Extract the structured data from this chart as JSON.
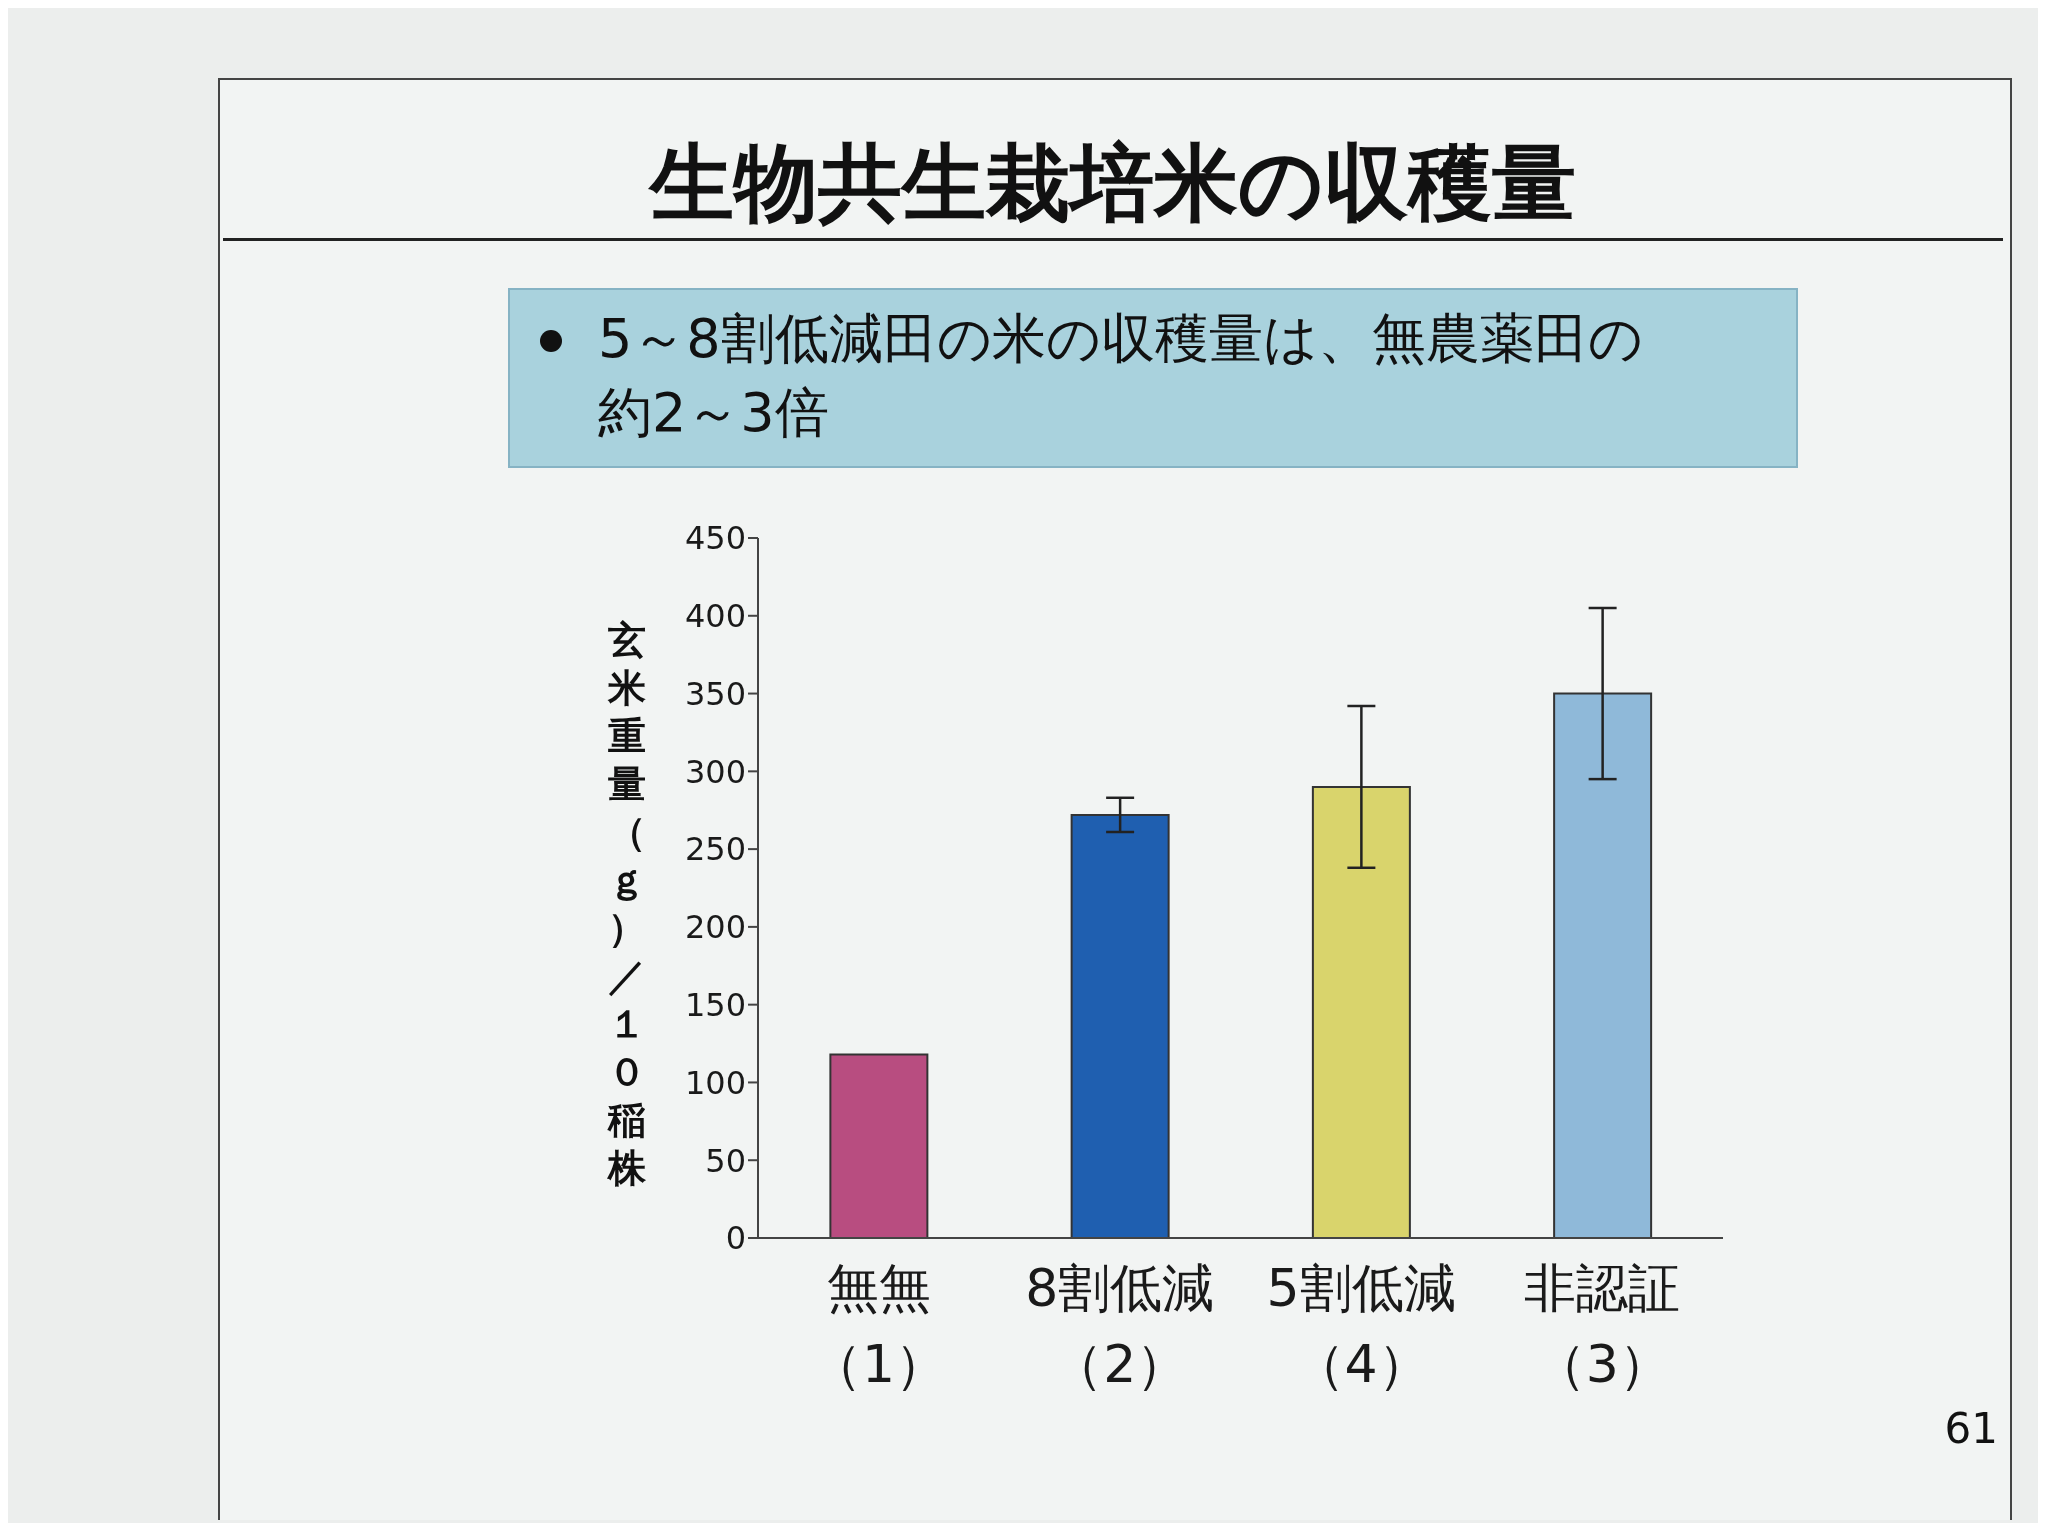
{
  "chart_data": {
    "type": "bar",
    "title": "生物共生栽培米の収穫量",
    "subtitle": "5～8割低減田の米の収穫量は、無農薬田の約2～3倍",
    "ylabel": "玄米重量（ｇ）／１０稲株",
    "categories": [
      "無無（1）",
      "8割低減（2）",
      "5割低減（4）",
      "非認証（3）"
    ],
    "values": [
      118,
      272,
      290,
      350
    ],
    "errors": [
      null,
      11,
      52,
      55
    ],
    "colors": [
      "#b84d80",
      "#1f5fb0",
      "#d9d46c",
      "#8fb9d9"
    ],
    "ylim": [
      0,
      450
    ],
    "yticks": [
      0,
      50,
      100,
      150,
      200,
      250,
      300,
      350,
      400,
      450
    ],
    "annotations": [
      "61"
    ]
  }
}
